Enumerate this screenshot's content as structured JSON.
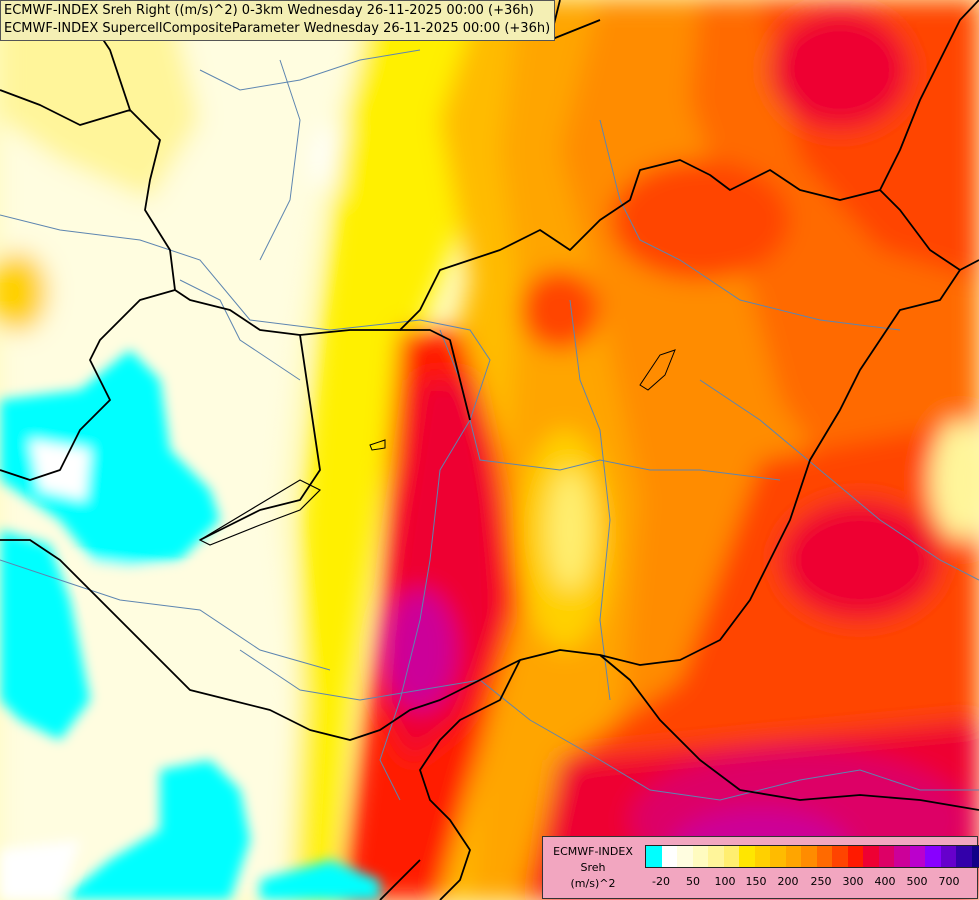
{
  "header": {
    "line1": "ECMWF-INDEX Sreh Right ((m/s)^2) 0-3km Wednesday 26-11-2025 00:00 (+36h)",
    "line2": "ECMWF-INDEX SupercellCompositeParameter Wednesday 26-11-2025 00:00 (+36h)"
  },
  "legend": {
    "title1": "ECMWF-INDEX",
    "title2": "Sreh",
    "title3": "(m/s)^2",
    "colors": [
      "#00ffff",
      "#ffffff",
      "#fffde0",
      "#fffbc0",
      "#fff59a",
      "#ffee70",
      "#ffe600",
      "#ffd000",
      "#ffbb00",
      "#ffa500",
      "#ff8c00",
      "#ff6a00",
      "#ff4400",
      "#ff1a00",
      "#ee0033",
      "#dd0066",
      "#cc0099",
      "#bb00cc",
      "#8800ff",
      "#6600cc",
      "#3300aa",
      "#110088"
    ],
    "ticks": [
      "-20",
      "50",
      "100",
      "150",
      "200",
      "250",
      "300",
      "400",
      "500",
      "700"
    ]
  }
}
